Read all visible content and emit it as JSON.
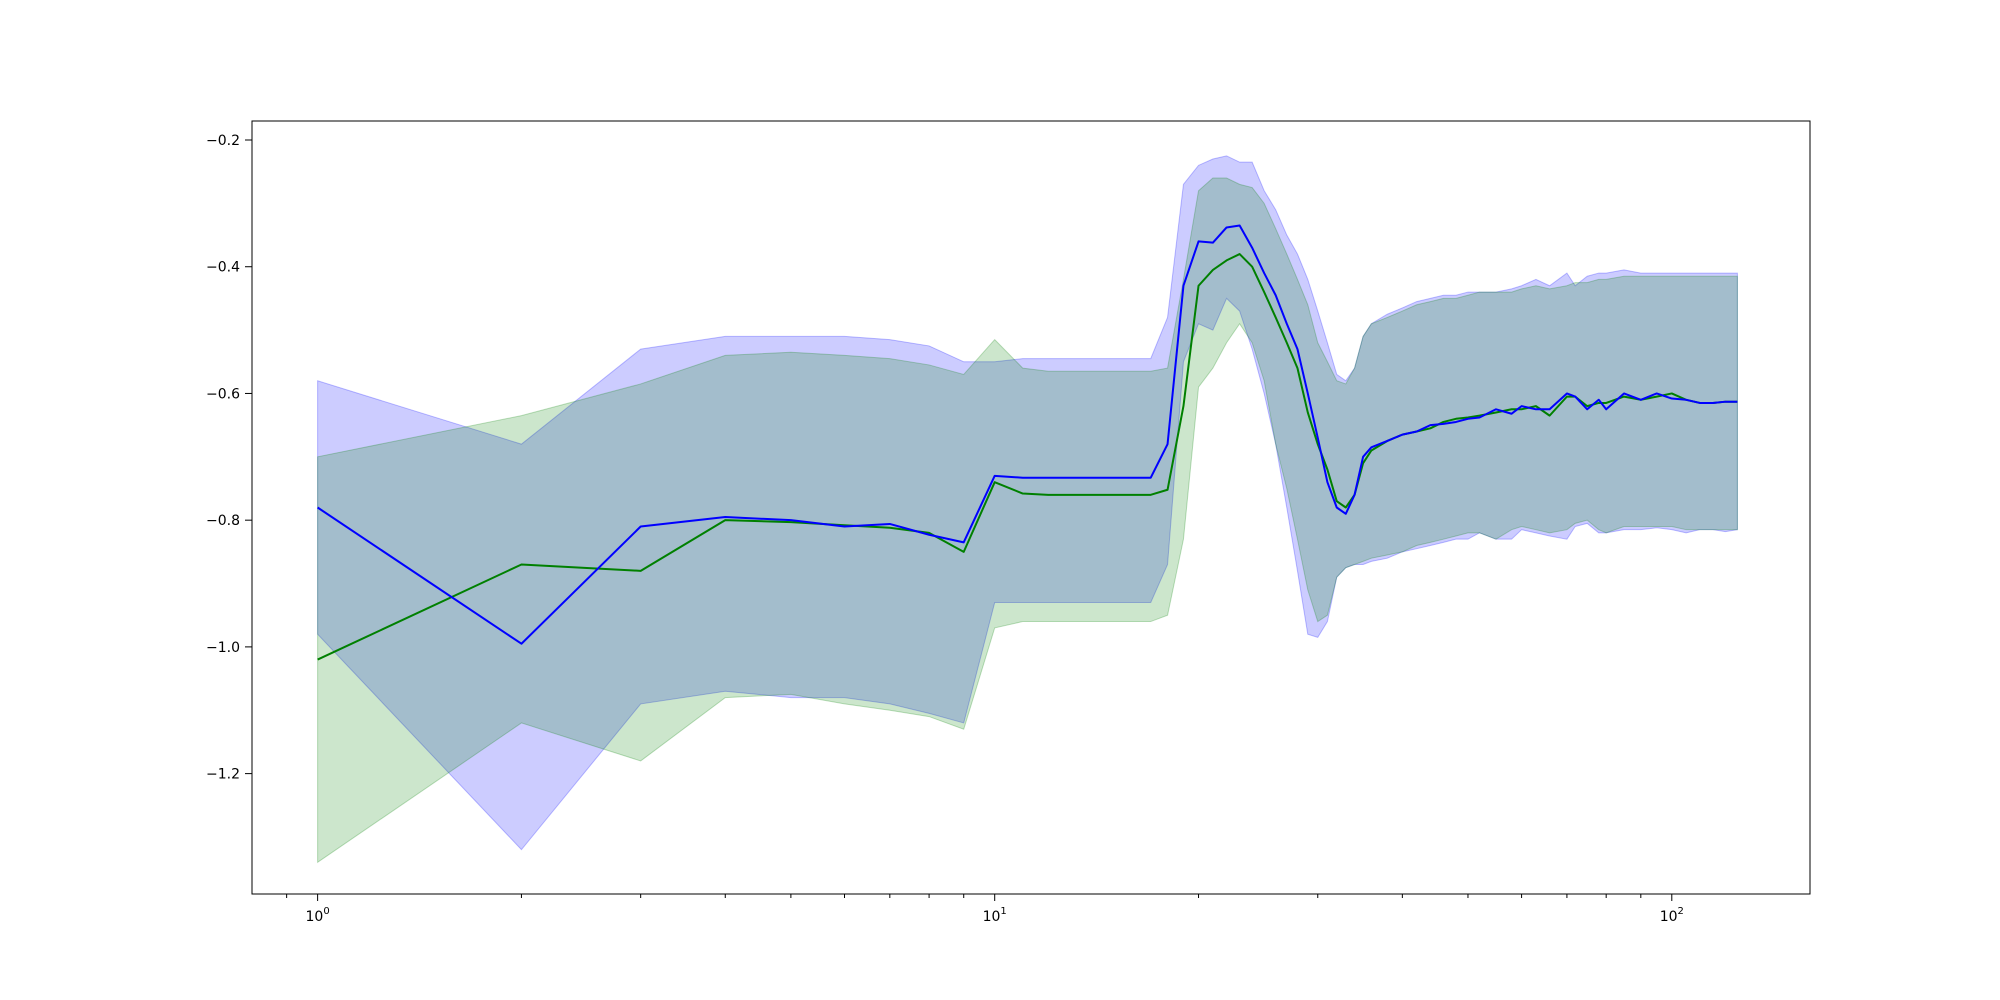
{
  "chart_data": {
    "type": "line",
    "xscale": "log",
    "xlim": [
      0.8,
      160
    ],
    "ylim": [
      -1.39,
      -0.17
    ],
    "grid": false,
    "title": "",
    "xlabel": "",
    "ylabel": "",
    "x_ticks": [
      {
        "value": 1,
        "base": "10",
        "exp": "0"
      },
      {
        "value": 10,
        "base": "10",
        "exp": "1"
      },
      {
        "value": 100,
        "base": "10",
        "exp": "2"
      }
    ],
    "y_ticks": [
      {
        "value": -0.2,
        "label": "−0.2"
      },
      {
        "value": -0.4,
        "label": "−0.4"
      },
      {
        "value": -0.6,
        "label": "−0.6"
      },
      {
        "value": -0.8,
        "label": "−0.8"
      },
      {
        "value": -1.0,
        "label": "−1.0"
      },
      {
        "value": -1.2,
        "label": "−1.2"
      }
    ],
    "series": [
      {
        "color": "#0000ff",
        "band_color": "#0000ff",
        "band_opacity": 0.2,
        "x": [
          1,
          2,
          3,
          4,
          5,
          6,
          7,
          8,
          9,
          10,
          11,
          12,
          13,
          14,
          15,
          16,
          17,
          18,
          19,
          20,
          21,
          22,
          23,
          24,
          25,
          26,
          27,
          28,
          29,
          30,
          31,
          32,
          33,
          34,
          35,
          36,
          38,
          40,
          42,
          44,
          46,
          48,
          50,
          52,
          55,
          58,
          60,
          63,
          66,
          70,
          72,
          75,
          78,
          80,
          85,
          90,
          95,
          100,
          105,
          110,
          115,
          120,
          125
        ],
        "mean": [
          -0.78,
          -0.995,
          -0.81,
          -0.795,
          -0.8,
          -0.81,
          -0.806,
          -0.823,
          -0.835,
          -0.73,
          -0.733,
          -0.733,
          -0.733,
          -0.733,
          -0.733,
          -0.733,
          -0.733,
          -0.68,
          -0.43,
          -0.36,
          -0.362,
          -0.338,
          -0.335,
          -0.37,
          -0.41,
          -0.445,
          -0.49,
          -0.53,
          -0.6,
          -0.67,
          -0.74,
          -0.78,
          -0.79,
          -0.76,
          -0.7,
          -0.685,
          -0.675,
          -0.665,
          -0.66,
          -0.65,
          -0.648,
          -0.645,
          -0.64,
          -0.638,
          -0.625,
          -0.632,
          -0.62,
          -0.625,
          -0.625,
          -0.6,
          -0.605,
          -0.625,
          -0.61,
          -0.625,
          -0.6,
          -0.61,
          -0.6,
          -0.608,
          -0.61,
          -0.615,
          -0.615,
          -0.613,
          -0.613
        ],
        "lower": [
          -0.98,
          -1.32,
          -1.09,
          -1.07,
          -1.08,
          -1.08,
          -1.09,
          -1.105,
          -1.12,
          -0.93,
          -0.93,
          -0.93,
          -0.93,
          -0.93,
          -0.93,
          -0.93,
          -0.93,
          -0.87,
          -0.55,
          -0.49,
          -0.5,
          -0.45,
          -0.47,
          -0.53,
          -0.6,
          -0.68,
          -0.78,
          -0.88,
          -0.98,
          -0.985,
          -0.96,
          -0.89,
          -0.875,
          -0.87,
          -0.87,
          -0.865,
          -0.86,
          -0.85,
          -0.845,
          -0.84,
          -0.835,
          -0.83,
          -0.83,
          -0.82,
          -0.83,
          -0.83,
          -0.815,
          -0.82,
          -0.825,
          -0.83,
          -0.81,
          -0.805,
          -0.82,
          -0.82,
          -0.815,
          -0.815,
          -0.812,
          -0.815,
          -0.82,
          -0.815,
          -0.815,
          -0.818,
          -0.815
        ],
        "upper": [
          -0.58,
          -0.68,
          -0.53,
          -0.51,
          -0.51,
          -0.51,
          -0.515,
          -0.525,
          -0.55,
          -0.55,
          -0.545,
          -0.545,
          -0.545,
          -0.545,
          -0.545,
          -0.545,
          -0.545,
          -0.48,
          -0.27,
          -0.24,
          -0.23,
          -0.225,
          -0.235,
          -0.235,
          -0.28,
          -0.31,
          -0.35,
          -0.38,
          -0.42,
          -0.47,
          -0.52,
          -0.57,
          -0.58,
          -0.56,
          -0.51,
          -0.49,
          -0.475,
          -0.465,
          -0.455,
          -0.45,
          -0.445,
          -0.445,
          -0.44,
          -0.44,
          -0.44,
          -0.435,
          -0.43,
          -0.42,
          -0.43,
          -0.41,
          -0.43,
          -0.415,
          -0.41,
          -0.41,
          -0.405,
          -0.41,
          -0.41,
          -0.41,
          -0.41,
          -0.41,
          -0.41,
          -0.41,
          -0.41
        ]
      },
      {
        "color": "#008000",
        "band_color": "#008000",
        "band_opacity": 0.2,
        "x": [
          1,
          2,
          3,
          4,
          5,
          6,
          7,
          8,
          9,
          10,
          11,
          12,
          13,
          14,
          15,
          16,
          17,
          18,
          19,
          20,
          21,
          22,
          23,
          24,
          25,
          26,
          27,
          28,
          29,
          30,
          31,
          32,
          33,
          34,
          35,
          36,
          38,
          40,
          42,
          44,
          46,
          48,
          50,
          52,
          55,
          58,
          60,
          63,
          66,
          70,
          72,
          75,
          78,
          80,
          85,
          90,
          95,
          100,
          105,
          110,
          115,
          120,
          125
        ],
        "mean": [
          -1.02,
          -0.87,
          -0.88,
          -0.8,
          -0.803,
          -0.808,
          -0.812,
          -0.82,
          -0.85,
          -0.74,
          -0.758,
          -0.76,
          -0.76,
          -0.76,
          -0.76,
          -0.76,
          -0.76,
          -0.752,
          -0.62,
          -0.43,
          -0.405,
          -0.39,
          -0.38,
          -0.4,
          -0.44,
          -0.48,
          -0.52,
          -0.56,
          -0.63,
          -0.68,
          -0.72,
          -0.77,
          -0.78,
          -0.76,
          -0.71,
          -0.69,
          -0.675,
          -0.665,
          -0.66,
          -0.655,
          -0.645,
          -0.64,
          -0.638,
          -0.635,
          -0.63,
          -0.625,
          -0.625,
          -0.62,
          -0.635,
          -0.605,
          -0.605,
          -0.62,
          -0.615,
          -0.615,
          -0.605,
          -0.61,
          -0.605,
          -0.6,
          -0.61,
          -0.615,
          -0.615,
          -0.613,
          -0.613
        ],
        "lower": [
          -1.34,
          -1.12,
          -1.18,
          -1.08,
          -1.075,
          -1.09,
          -1.1,
          -1.11,
          -1.13,
          -0.97,
          -0.96,
          -0.96,
          -0.96,
          -0.96,
          -0.96,
          -0.96,
          -0.96,
          -0.95,
          -0.83,
          -0.59,
          -0.56,
          -0.52,
          -0.49,
          -0.52,
          -0.58,
          -0.68,
          -0.75,
          -0.83,
          -0.91,
          -0.96,
          -0.95,
          -0.89,
          -0.875,
          -0.87,
          -0.865,
          -0.86,
          -0.855,
          -0.85,
          -0.84,
          -0.835,
          -0.83,
          -0.825,
          -0.82,
          -0.82,
          -0.83,
          -0.815,
          -0.81,
          -0.815,
          -0.82,
          -0.815,
          -0.805,
          -0.8,
          -0.815,
          -0.82,
          -0.81,
          -0.81,
          -0.81,
          -0.81,
          -0.815,
          -0.815,
          -0.815,
          -0.815,
          -0.815
        ],
        "upper": [
          -0.7,
          -0.635,
          -0.585,
          -0.54,
          -0.535,
          -0.54,
          -0.545,
          -0.555,
          -0.57,
          -0.515,
          -0.56,
          -0.565,
          -0.565,
          -0.565,
          -0.565,
          -0.565,
          -0.565,
          -0.56,
          -0.42,
          -0.28,
          -0.26,
          -0.26,
          -0.27,
          -0.275,
          -0.3,
          -0.34,
          -0.38,
          -0.42,
          -0.46,
          -0.52,
          -0.55,
          -0.58,
          -0.585,
          -0.56,
          -0.51,
          -0.49,
          -0.48,
          -0.47,
          -0.46,
          -0.455,
          -0.45,
          -0.45,
          -0.445,
          -0.44,
          -0.44,
          -0.44,
          -0.435,
          -0.43,
          -0.435,
          -0.43,
          -0.425,
          -0.425,
          -0.42,
          -0.42,
          -0.415,
          -0.415,
          -0.415,
          -0.415,
          -0.415,
          -0.415,
          -0.415,
          -0.415,
          -0.415
        ]
      }
    ]
  }
}
